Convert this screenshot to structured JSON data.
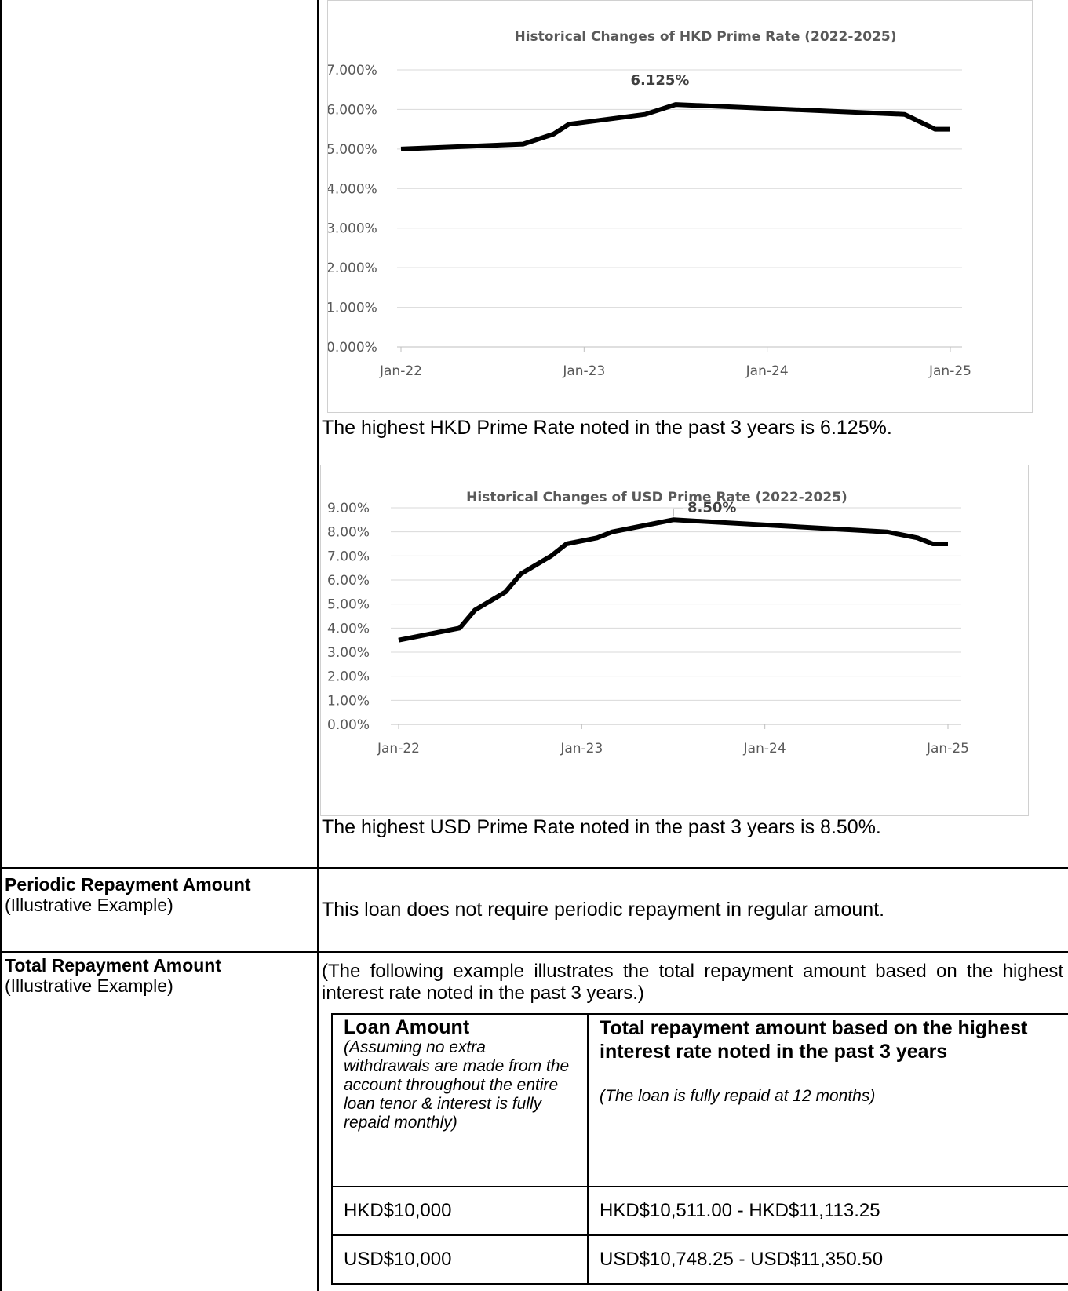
{
  "hkd_chart": {
    "title": "Historical Changes of HKD Prime Rate (2022-2025)",
    "y_ticks": [
      "7.000%",
      "6.000%",
      "5.000%",
      "4.000%",
      "3.000%",
      "2.000%",
      "1.000%",
      "0.000%"
    ],
    "x_ticks": [
      "Jan-22",
      "Jan-23",
      "Jan-24",
      "Jan-25"
    ],
    "peak_label": "6.125%",
    "caption": "The highest HKD Prime Rate noted in the past 3 years is 6.125%."
  },
  "usd_chart": {
    "title": "Historical Changes of USD Prime Rate (2022-2025)",
    "y_ticks": [
      "9.00%",
      "8.00%",
      "7.00%",
      "6.00%",
      "5.00%",
      "4.00%",
      "3.00%",
      "2.00%",
      "1.00%",
      "0.00%"
    ],
    "x_ticks": [
      "Jan-22",
      "Jan-23",
      "Jan-24",
      "Jan-25"
    ],
    "peak_label": "8.50%",
    "caption": "The highest USD Prime Rate noted in the past 3 years is 8.50%."
  },
  "chart_data": [
    {
      "type": "line",
      "title": "Historical Changes of HKD Prime Rate (2022-2025)",
      "ylim": [
        0,
        7
      ],
      "x_range": [
        "2022-01",
        "2025-01"
      ],
      "series": [
        {
          "x": [
            "2022-01",
            "2022-09",
            "2022-11",
            "2022-12",
            "2023-05",
            "2023-07",
            "2024-10",
            "2024-12",
            "2025-01"
          ],
          "values": [
            5.0,
            5.125,
            5.375,
            5.625,
            5.875,
            6.125,
            5.875,
            5.5,
            5.5
          ]
        }
      ],
      "annotations": [
        "6.125%"
      ]
    },
    {
      "type": "line",
      "title": "Historical Changes of USD Prime Rate (2022-2025)",
      "ylim": [
        0,
        9
      ],
      "x_range": [
        "2022-01",
        "2025-01"
      ],
      "series": [
        {
          "x": [
            "2022-01",
            "2022-05",
            "2022-06",
            "2022-08",
            "2022-09",
            "2022-11",
            "2022-12",
            "2023-02",
            "2023-03",
            "2023-05",
            "2023-07",
            "2024-09",
            "2024-11",
            "2024-12",
            "2025-01"
          ],
          "values": [
            3.5,
            4.0,
            4.75,
            5.5,
            6.25,
            7.0,
            7.5,
            7.75,
            8.0,
            8.25,
            8.5,
            8.0,
            7.75,
            7.5,
            7.5
          ]
        }
      ],
      "annotations": [
        "8.50%"
      ]
    }
  ],
  "periodic": {
    "label_bold": "Periodic Repayment Amount",
    "label_rest": " (Illustrative Example)",
    "text": "This loan does not require periodic repayment in regular amount."
  },
  "total": {
    "label_bold": "Total Repayment Amount",
    "label_rest": "(Illustrative Example)",
    "intro": "(The following example illustrates the total repayment amount based on the highest interest rate noted in the past 3 years.)",
    "col1_head": "Loan Amount",
    "col1_note": "(Assuming no extra withdrawals are made from the account throughout the entire loan tenor & interest is fully repaid monthly)",
    "col2_head": "Total repayment amount based on the highest interest rate noted in the past 3 years",
    "col2_note": "(The loan is fully repaid at 12 months)",
    "rows": [
      {
        "amount": "HKD$10,000",
        "total": "HKD$10,511.00 - HKD$11,113.25"
      },
      {
        "amount": "USD$10,000",
        "total": "USD$10,748.25 - USD$11,350.50"
      }
    ]
  }
}
